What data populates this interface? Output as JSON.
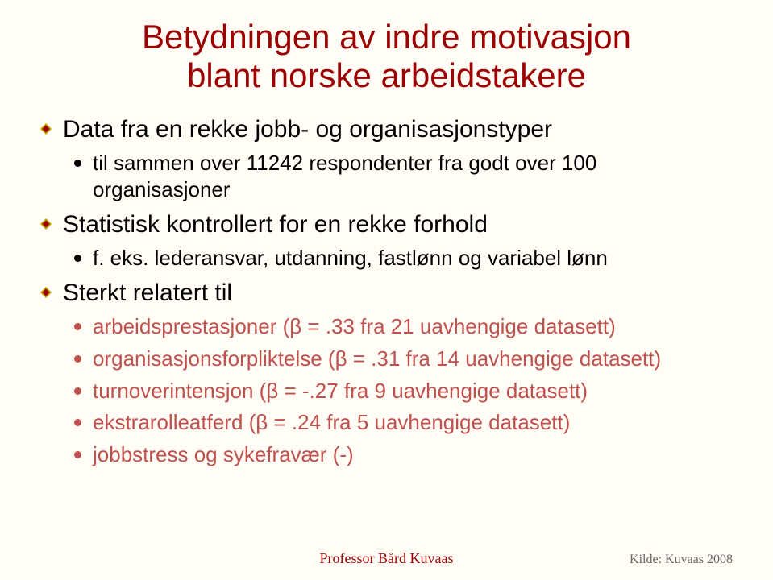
{
  "colors": {
    "title": "#9c0000",
    "body": "#000000",
    "sub_black": "#000000",
    "sub_red": "#c0504d",
    "background": "#fffdf5",
    "bullet_outer": "#c0a000",
    "bullet_inner": "#9c0000",
    "footer": "#9c0000",
    "source": "#666666"
  },
  "title_line1": "Betydningen av indre motivasjon",
  "title_line2": "blant norske arbeidstakere",
  "items": [
    {
      "level": 1,
      "text": "Data fra en rekke jobb- og organisasjonstyper"
    },
    {
      "level": 2,
      "color_key": "sub_black",
      "text": "til sammen  over 11242 respondenter fra godt over 100 organisasjoner"
    },
    {
      "level": 1,
      "text": "Statistisk kontrollert for en rekke forhold"
    },
    {
      "level": 2,
      "color_key": "sub_black",
      "text": "f. eks. lederansvar, utdanning, fastlønn og variabel lønn"
    },
    {
      "level": 1,
      "text": "Sterkt relatert til"
    },
    {
      "level": 2,
      "color_key": "sub_red",
      "text": "arbeidsprestasjoner (β = .33 fra 21 uavhengige datasett)"
    },
    {
      "level": 2,
      "color_key": "sub_red",
      "text": "organisasjonsforpliktelse (β = .31 fra 14 uavhengige datasett)"
    },
    {
      "level": 2,
      "color_key": "sub_red",
      "text": "turnoverintensjon (β = -.27 fra 9 uavhengige datasett)"
    },
    {
      "level": 2,
      "color_key": "sub_red",
      "text": "ekstrarolleatferd (β = .24 fra 5 uavhengige datasett)"
    },
    {
      "level": 2,
      "color_key": "sub_red",
      "text": "jobbstress og sykefravær (-)"
    }
  ],
  "footer": "Professor Bård Kuvaas",
  "source": "Kilde: Kuvaas 2008"
}
